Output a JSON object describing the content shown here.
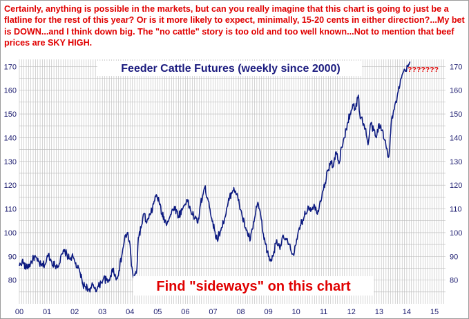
{
  "headline": {
    "part1": "Certainly, anything is possible in the markets, but can you really imagine that this chart is going to just be a flatline for the rest of this year? Or is it more likely to expect, minimally, 15-20 cents in either direction?...My bet is ",
    "down_word": "DOWN",
    "part2": "...and I think down big. The \"no cattle\" story is too old and too well known...Not to mention that beef prices are ",
    "sky_high": "SKY HIGH",
    "part3": "."
  },
  "colors": {
    "headline": "#e00000",
    "title": "#1a1a7e",
    "series": "#0c1a80",
    "grid": "#b9b9b9",
    "axis_text": "#1a1a6e",
    "annotation": "#e00000",
    "question": "#e00000"
  },
  "chart_data": {
    "type": "line",
    "title": "Feeder Cattle Futures (weekly since 2000)",
    "annotation": "Find \"sideways\" on this chart",
    "question_marks": "???????",
    "x_tick_labels": [
      "00",
      "01",
      "02",
      "03",
      "04",
      "05",
      "06",
      "07",
      "08",
      "09",
      "10",
      "11",
      "12",
      "13",
      "14",
      "15"
    ],
    "y_ticks": [
      80,
      90,
      100,
      110,
      120,
      130,
      140,
      150,
      160,
      170
    ],
    "ylim": [
      70,
      173
    ],
    "xlim": [
      2000.0,
      2015.4
    ],
    "grid": true,
    "series": [
      {
        "points": [
          [
            2000.0,
            86
          ],
          [
            2000.1,
            88
          ],
          [
            2000.25,
            85
          ],
          [
            2000.4,
            87
          ],
          [
            2000.55,
            90
          ],
          [
            2000.65,
            88
          ],
          [
            2000.8,
            86
          ],
          [
            2000.95,
            87
          ],
          [
            2001.05,
            91
          ],
          [
            2001.15,
            88
          ],
          [
            2001.3,
            86
          ],
          [
            2001.45,
            87
          ],
          [
            2001.55,
            91
          ],
          [
            2001.65,
            92
          ],
          [
            2001.8,
            89
          ],
          [
            2001.9,
            90
          ],
          [
            2002.0,
            88
          ],
          [
            2002.1,
            85
          ],
          [
            2002.2,
            83
          ],
          [
            2002.3,
            78
          ],
          [
            2002.45,
            77
          ],
          [
            2002.55,
            75
          ],
          [
            2002.65,
            78
          ],
          [
            2002.8,
            76
          ],
          [
            2002.95,
            79
          ],
          [
            2003.05,
            81
          ],
          [
            2003.2,
            79
          ],
          [
            2003.3,
            82
          ],
          [
            2003.4,
            85
          ],
          [
            2003.5,
            80
          ],
          [
            2003.6,
            84
          ],
          [
            2003.7,
            90
          ],
          [
            2003.8,
            97
          ],
          [
            2003.9,
            100
          ],
          [
            2004.0,
            95
          ],
          [
            2004.05,
            86
          ],
          [
            2004.15,
            80
          ],
          [
            2004.25,
            85
          ],
          [
            2004.3,
            98
          ],
          [
            2004.4,
            102
          ],
          [
            2004.5,
            108
          ],
          [
            2004.6,
            104
          ],
          [
            2004.75,
            108
          ],
          [
            2004.85,
            112
          ],
          [
            2004.95,
            116
          ],
          [
            2005.05,
            113
          ],
          [
            2005.15,
            108
          ],
          [
            2005.3,
            104
          ],
          [
            2005.45,
            107
          ],
          [
            2005.6,
            111
          ],
          [
            2005.75,
            107
          ],
          [
            2005.9,
            110
          ],
          [
            2006.05,
            114
          ],
          [
            2006.2,
            109
          ],
          [
            2006.35,
            106
          ],
          [
            2006.45,
            104
          ],
          [
            2006.55,
            112
          ],
          [
            2006.7,
            119
          ],
          [
            2006.85,
            113
          ],
          [
            2006.95,
            106
          ],
          [
            2007.05,
            101
          ],
          [
            2007.15,
            97
          ],
          [
            2007.3,
            102
          ],
          [
            2007.45,
            107
          ],
          [
            2007.6,
            115
          ],
          [
            2007.75,
            119
          ],
          [
            2007.85,
            116
          ],
          [
            2007.95,
            112
          ],
          [
            2008.05,
            107
          ],
          [
            2008.2,
            101
          ],
          [
            2008.35,
            97
          ],
          [
            2008.5,
            106
          ],
          [
            2008.6,
            112
          ],
          [
            2008.7,
            109
          ],
          [
            2008.8,
            100
          ],
          [
            2008.9,
            95
          ],
          [
            2009.0,
            90
          ],
          [
            2009.1,
            88
          ],
          [
            2009.2,
            92
          ],
          [
            2009.3,
            97
          ],
          [
            2009.4,
            94
          ],
          [
            2009.55,
            98
          ],
          [
            2009.7,
            96
          ],
          [
            2009.8,
            93
          ],
          [
            2009.9,
            91
          ],
          [
            2010.0,
            95
          ],
          [
            2010.15,
            103
          ],
          [
            2010.3,
            107
          ],
          [
            2010.45,
            111
          ],
          [
            2010.55,
            110
          ],
          [
            2010.65,
            112
          ],
          [
            2010.75,
            108
          ],
          [
            2010.85,
            112
          ],
          [
            2010.95,
            117
          ],
          [
            2011.05,
            121
          ],
          [
            2011.15,
            126
          ],
          [
            2011.25,
            130
          ],
          [
            2011.35,
            128
          ],
          [
            2011.45,
            134
          ],
          [
            2011.55,
            129
          ],
          [
            2011.65,
            136
          ],
          [
            2011.75,
            140
          ],
          [
            2011.85,
            146
          ],
          [
            2011.95,
            150
          ],
          [
            2012.05,
            154
          ],
          [
            2012.15,
            152
          ],
          [
            2012.25,
            158
          ],
          [
            2012.3,
            150
          ],
          [
            2012.4,
            147
          ],
          [
            2012.5,
            144
          ],
          [
            2012.6,
            137
          ],
          [
            2012.7,
            146
          ],
          [
            2012.8,
            143
          ],
          [
            2012.9,
            140
          ],
          [
            2013.0,
            146
          ],
          [
            2013.1,
            143
          ],
          [
            2013.2,
            139
          ],
          [
            2013.3,
            134
          ],
          [
            2013.35,
            132
          ],
          [
            2013.4,
            140
          ],
          [
            2013.45,
            148
          ],
          [
            2013.55,
            152
          ],
          [
            2013.65,
            157
          ],
          [
            2013.75,
            162
          ],
          [
            2013.85,
            167
          ],
          [
            2013.95,
            168
          ],
          [
            2014.05,
            170
          ],
          [
            2014.12,
            172
          ]
        ]
      }
    ]
  }
}
